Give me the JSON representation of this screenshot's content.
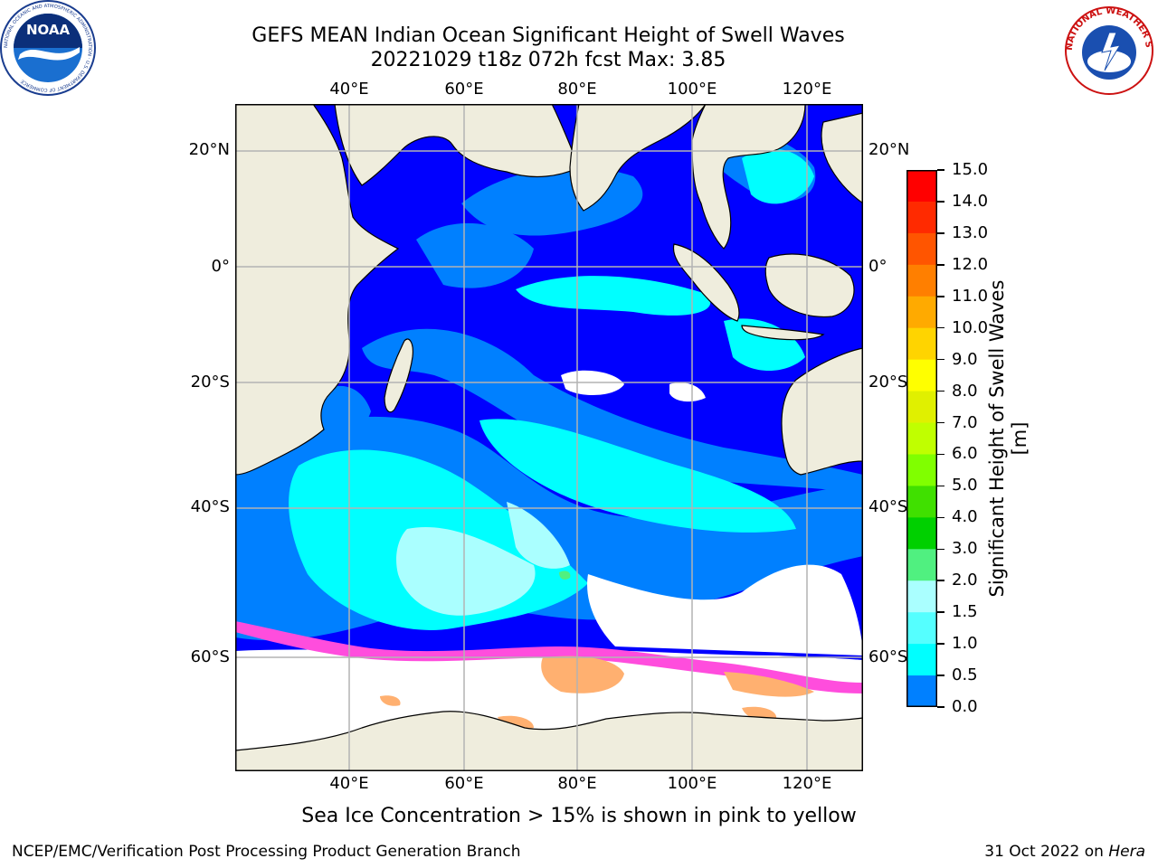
{
  "title": {
    "line1": "GEFS MEAN Indian Ocean Significant Height of Swell Waves",
    "line2": "20221029 t18z 072h fcst   Max: 3.85"
  },
  "map": {
    "lon_labels": [
      "40°E",
      "60°E",
      "80°E",
      "100°E",
      "120°E"
    ],
    "lat_labels": [
      "20°N",
      "0°",
      "20°S",
      "40°S",
      "60°S"
    ],
    "colors": {
      "land": "#efeddd",
      "ocean_deep": "#0000ff",
      "ice_free": "#ffffff",
      "gridline": "#b3b3b3",
      "sea_ice_pink": "#ff4ddd",
      "sea_ice_orange": "#ffb070"
    }
  },
  "colorbar": {
    "label": "Significant Height of Swell Waves [m]",
    "ticks": [
      "15.0",
      "14.0",
      "13.0",
      "12.0",
      "11.0",
      "10.0",
      "9.0",
      "8.0",
      "7.0",
      "6.0",
      "5.0",
      "4.0",
      "3.0",
      "2.0",
      "1.5",
      "1.0",
      "0.5",
      "0.0"
    ],
    "colors": [
      "#ff0000",
      "#ff2a00",
      "#ff5500",
      "#ff7f00",
      "#ffaa00",
      "#ffd400",
      "#ffff00",
      "#e0f000",
      "#c0ff00",
      "#80ff00",
      "#40e000",
      "#00d000",
      "#50f080",
      "#aaffff",
      "#55ffff",
      "#00ffff",
      "#0080ff",
      "#0000ff"
    ]
  },
  "note": "Sea Ice Concentration > 15% is shown in pink to yellow",
  "footer": {
    "left": "NCEP/EMC/Verification Post Processing Product Generation Branch",
    "right_prefix": "31 Oct 2022 on ",
    "right_host": "Hera"
  },
  "logos": {
    "noaa_text": "NOAA",
    "noaa_ring": "NATIONAL OCEANIC AND ATMOSPHERIC ADMINISTRATION · U.S. DEPARTMENT OF COMMERCE",
    "nws_ring": "NATIONAL WEATHER SERVICE"
  }
}
